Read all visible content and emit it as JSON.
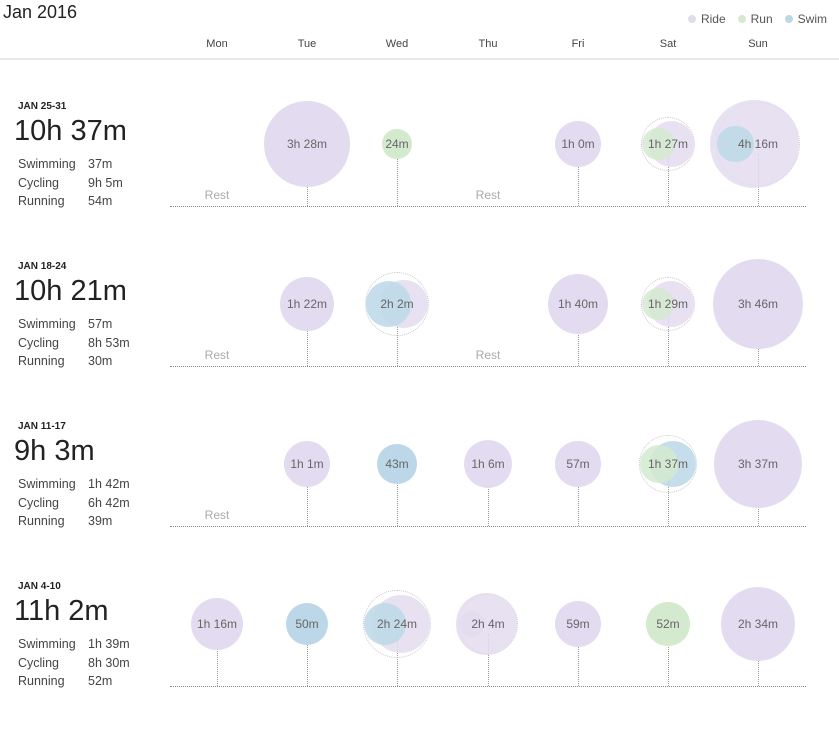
{
  "calendar": {
    "month_title": "Jan 2016",
    "legend": [
      {
        "label": "Ride",
        "color": "#e2dced"
      },
      {
        "label": "Run",
        "color": "#d6e8d2"
      },
      {
        "label": "Swim",
        "color": "#bcd7e6"
      }
    ],
    "days": [
      "Mon",
      "Tue",
      "Wed",
      "Thu",
      "Fri",
      "Sat",
      "Sun"
    ],
    "colors": {
      "ride": "#e3dcf0",
      "run": "#d4eacf",
      "swim": "#bcd8e8"
    },
    "weeks": [
      {
        "range": "JAN 25-31",
        "total": "10h 37m",
        "stats": [
          {
            "label": "Swimming",
            "value": "37m"
          },
          {
            "label": "Cycling",
            "value": "9h 5m"
          },
          {
            "label": "Running",
            "value": "54m"
          }
        ],
        "entries": [
          {
            "rest": "Rest"
          },
          {
            "label": "3h 28m",
            "bubbles": [
              {
                "sport": "ride",
                "minutes": 208
              }
            ]
          },
          {
            "label": "24m",
            "bubbles": [
              {
                "sport": "run",
                "minutes": 24
              }
            ]
          },
          {
            "rest": "Rest"
          },
          {
            "label": "1h 0m",
            "bubbles": [
              {
                "sport": "ride",
                "minutes": 60
              }
            ]
          },
          {
            "label": "1h 27m",
            "bubbles": [
              {
                "sport": "ride",
                "minutes": 57
              },
              {
                "sport": "run",
                "minutes": 30
              }
            ],
            "ring": true
          },
          {
            "label": "4h 16m",
            "bubbles": [
              {
                "sport": "ride",
                "minutes": 219
              },
              {
                "sport": "swim",
                "minutes": 37
              }
            ],
            "ring": true
          }
        ]
      },
      {
        "range": "JAN 18-24",
        "total": "10h 21m",
        "stats": [
          {
            "label": "Swimming",
            "value": "57m"
          },
          {
            "label": "Cycling",
            "value": "8h 53m"
          },
          {
            "label": "Running",
            "value": "30m"
          }
        ],
        "entries": [
          {
            "rest": "Rest"
          },
          {
            "label": "1h 22m",
            "bubbles": [
              {
                "sport": "ride",
                "minutes": 82
              }
            ]
          },
          {
            "label": "2h 2m",
            "bubbles": [
              {
                "sport": "ride",
                "minutes": 65
              },
              {
                "sport": "swim",
                "minutes": 57
              }
            ],
            "ring": true
          },
          {
            "rest": "Rest"
          },
          {
            "label": "1h 40m",
            "bubbles": [
              {
                "sport": "ride",
                "minutes": 100
              }
            ]
          },
          {
            "label": "1h 29m",
            "bubbles": [
              {
                "sport": "ride",
                "minutes": 59
              },
              {
                "sport": "run",
                "minutes": 30
              }
            ],
            "ring": true
          },
          {
            "label": "3h 46m",
            "bubbles": [
              {
                "sport": "ride",
                "minutes": 226
              }
            ]
          }
        ]
      },
      {
        "range": "JAN 11-17",
        "total": "9h 3m",
        "stats": [
          {
            "label": "Swimming",
            "value": "1h 42m"
          },
          {
            "label": "Cycling",
            "value": "6h 42m"
          },
          {
            "label": "Running",
            "value": "39m"
          }
        ],
        "entries": [
          {
            "rest": "Rest"
          },
          {
            "label": "1h 1m",
            "bubbles": [
              {
                "sport": "ride",
                "minutes": 61
              }
            ]
          },
          {
            "label": "43m",
            "bubbles": [
              {
                "sport": "swim",
                "minutes": 43
              }
            ]
          },
          {
            "label": "1h 6m",
            "bubbles": [
              {
                "sport": "ride",
                "minutes": 66
              }
            ]
          },
          {
            "label": "57m",
            "bubbles": [
              {
                "sport": "ride",
                "minutes": 57
              }
            ]
          },
          {
            "label": "1h 37m",
            "bubbles": [
              {
                "sport": "swim",
                "minutes": 58
              },
              {
                "sport": "run",
                "minutes": 39
              }
            ],
            "ring": true
          },
          {
            "label": "3h 37m",
            "bubbles": [
              {
                "sport": "ride",
                "minutes": 217
              }
            ]
          }
        ]
      },
      {
        "range": "JAN 4-10",
        "total": "11h 2m",
        "stats": [
          {
            "label": "Swimming",
            "value": "1h 39m"
          },
          {
            "label": "Cycling",
            "value": "8h 30m"
          },
          {
            "label": "Running",
            "value": "52m"
          }
        ],
        "entries": [
          {
            "label": "1h 16m",
            "bubbles": [
              {
                "sport": "ride",
                "minutes": 76
              }
            ]
          },
          {
            "label": "50m",
            "bubbles": [
              {
                "sport": "swim",
                "minutes": 50
              }
            ]
          },
          {
            "label": "2h 24m",
            "bubbles": [
              {
                "sport": "ride",
                "minutes": 95
              },
              {
                "sport": "swim",
                "minutes": 49
              }
            ],
            "ring": true
          },
          {
            "label": "2h 4m",
            "bubbles": [
              {
                "sport": "ride",
                "minutes": 105
              },
              {
                "sport": "ride",
                "minutes": 19
              }
            ],
            "ring": true
          },
          {
            "label": "59m",
            "bubbles": [
              {
                "sport": "ride",
                "minutes": 59
              }
            ]
          },
          {
            "label": "52m",
            "bubbles": [
              {
                "sport": "run",
                "minutes": 52
              }
            ]
          },
          {
            "label": "2h 34m",
            "bubbles": [
              {
                "sport": "ride",
                "minutes": 154
              }
            ]
          }
        ]
      }
    ]
  }
}
